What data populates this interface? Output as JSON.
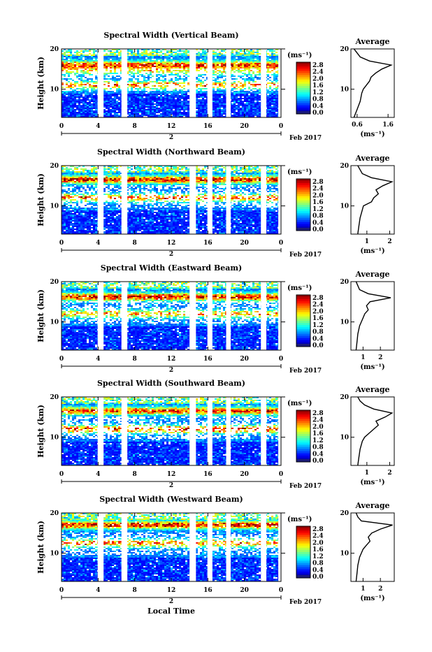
{
  "chart_data": {
    "type": "heatmap",
    "xlabel": "Local Time",
    "date_label": "Feb 2017",
    "date_marker": "2",
    "x_ticks": [
      "0",
      "4",
      "8",
      "12",
      "16",
      "20",
      "0"
    ],
    "x_range": [
      0,
      24
    ],
    "ylabel": "Height (km)",
    "y_ticks": [
      "10",
      "20"
    ],
    "y_range": [
      3,
      20
    ],
    "colorbar_label": "(ms⁻¹)",
    "colorbar_ticks": [
      "2.8",
      "2.4",
      "2.0",
      "1.6",
      "1.2",
      "0.8",
      "0.4",
      "0.0"
    ],
    "colorbar_range": [
      0,
      3
    ],
    "profile_title": "Average",
    "profile_xlabel": "(ms⁻¹)",
    "gaps_hours": [
      [
        3.95,
        4.6
      ],
      [
        6.55,
        7.2
      ],
      [
        14.0,
        14.7
      ],
      [
        15.95,
        16.5
      ],
      [
        18.0,
        18.5
      ],
      [
        21.8,
        22.4
      ],
      [
        23.7,
        24
      ]
    ],
    "panels": [
      {
        "title": "Spectral Width (Vertical Beam)",
        "profile_ticks": [
          "0.6",
          "1.6"
        ],
        "profile_xlim": [
          0.4,
          1.8
        ],
        "layers": [
          {
            "height_km": 16.0,
            "value": 2.6
          },
          {
            "height_km": 14.5,
            "value": 1.8
          },
          {
            "height_km": 11.0,
            "value": 2.4
          }
        ],
        "profile": {
          "height_km": [
            3,
            5,
            7,
            9,
            10,
            11,
            12,
            13,
            14,
            15,
            16,
            17,
            18,
            19,
            20
          ],
          "value": [
            0.5,
            0.6,
            0.7,
            0.75,
            0.8,
            0.9,
            1.0,
            1.05,
            1.2,
            1.4,
            1.7,
            1.0,
            0.7,
            0.6,
            0.5
          ]
        }
      },
      {
        "title": "Spectral Width (Northward Beam)",
        "profile_ticks": [
          "1",
          "2"
        ],
        "profile_xlim": [
          0.3,
          2.2
        ],
        "layers": [
          {
            "height_km": 16.5,
            "value": 2.8
          },
          {
            "height_km": 12.0,
            "value": 2.4
          }
        ],
        "profile": {
          "height_km": [
            3,
            5,
            7,
            9,
            10,
            11,
            12,
            13,
            14,
            15,
            16,
            17,
            18,
            19,
            20
          ],
          "value": [
            0.6,
            0.65,
            0.7,
            0.8,
            0.85,
            1.2,
            1.3,
            1.5,
            1.4,
            1.7,
            2.1,
            1.2,
            0.8,
            0.7,
            0.6
          ]
        }
      },
      {
        "title": "Spectral Width (Eastward Beam)",
        "profile_ticks": [
          "1",
          "2"
        ],
        "profile_xlim": [
          0.3,
          2.8
        ],
        "layers": [
          {
            "height_km": 16.2,
            "value": 2.8
          },
          {
            "height_km": 12.0,
            "value": 2.2
          }
        ],
        "profile": {
          "height_km": [
            3,
            5,
            7,
            9,
            10,
            11,
            12,
            13,
            14,
            15,
            16,
            17,
            18,
            19,
            20
          ],
          "value": [
            0.6,
            0.65,
            0.7,
            0.8,
            0.9,
            1.0,
            1.1,
            1.3,
            1.2,
            1.4,
            2.6,
            1.3,
            0.8,
            0.7,
            0.6
          ]
        }
      },
      {
        "title": "Spectral Width (Southward Beam)",
        "profile_ticks": [
          "1",
          "2"
        ],
        "profile_xlim": [
          0.3,
          2.2
        ],
        "layers": [
          {
            "height_km": 16.5,
            "value": 2.6
          },
          {
            "height_km": 12.0,
            "value": 2.6
          }
        ],
        "profile": {
          "height_km": [
            3,
            5,
            7,
            9,
            10,
            11,
            12,
            13,
            14,
            15,
            16,
            17,
            18,
            19,
            20
          ],
          "value": [
            0.6,
            0.65,
            0.7,
            0.8,
            0.9,
            1.1,
            1.3,
            1.5,
            1.4,
            1.8,
            2.1,
            1.3,
            0.9,
            0.7,
            0.6
          ]
        }
      },
      {
        "title": "Spectral Width (Westward Beam)",
        "profile_ticks": [
          "1",
          "2"
        ],
        "profile_xlim": [
          0.3,
          2.8
        ],
        "layers": [
          {
            "height_km": 17.0,
            "value": 2.8
          },
          {
            "height_km": 12.5,
            "value": 2.4
          }
        ],
        "profile": {
          "height_km": [
            3,
            5,
            7,
            9,
            10,
            11,
            12,
            13,
            14,
            15,
            16,
            17,
            18,
            19,
            20
          ],
          "value": [
            0.6,
            0.65,
            0.7,
            0.8,
            0.9,
            1.0,
            1.2,
            1.4,
            1.3,
            1.5,
            2.0,
            2.7,
            0.9,
            0.7,
            0.6
          ]
        }
      }
    ]
  }
}
